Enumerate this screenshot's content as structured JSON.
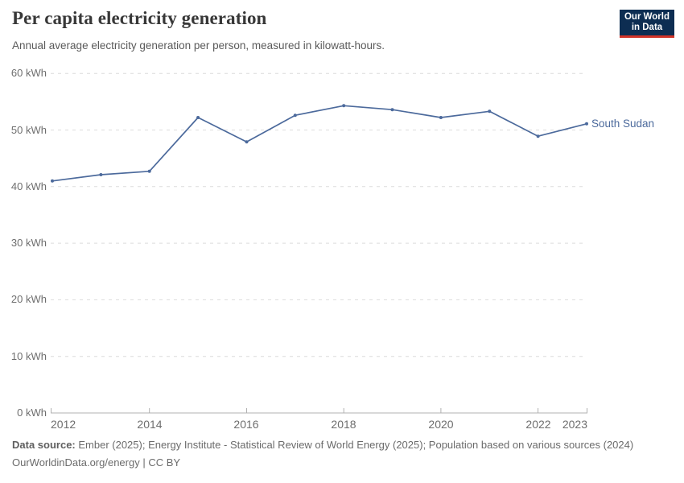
{
  "header": {
    "title": "Per capita electricity generation",
    "subtitle": "Annual average electricity generation per person, measured in kilowatt-hours.",
    "logo": {
      "line1": "Our World",
      "line2": "in Data",
      "bg_color": "#0d2d52",
      "accent_color": "#d13328"
    }
  },
  "chart_data": {
    "type": "line",
    "title": "Per capita electricity generation",
    "unit": "kWh",
    "x": [
      2012,
      2013,
      2014,
      2015,
      2016,
      2017,
      2018,
      2019,
      2020,
      2021,
      2022,
      2023
    ],
    "series": [
      {
        "name": "South Sudan",
        "color": "#4c6a9c",
        "values": [
          41.0,
          42.1,
          42.7,
          52.2,
          47.9,
          52.6,
          54.3,
          53.6,
          52.2,
          53.3,
          48.9,
          51.1
        ]
      }
    ],
    "ylim": [
      0,
      60
    ],
    "yticks": [
      {
        "value": 0,
        "label": "0 kWh"
      },
      {
        "value": 10,
        "label": "10 kWh"
      },
      {
        "value": 20,
        "label": "20 kWh"
      },
      {
        "value": 30,
        "label": "30 kWh"
      },
      {
        "value": 40,
        "label": "40 kWh"
      },
      {
        "value": 50,
        "label": "50 kWh"
      },
      {
        "value": 60,
        "label": "60 kWh"
      }
    ],
    "xticks": [
      {
        "value": 2012,
        "label": "2012",
        "align": "start"
      },
      {
        "value": 2014,
        "label": "2014",
        "align": "center"
      },
      {
        "value": 2016,
        "label": "2016",
        "align": "center"
      },
      {
        "value": 2018,
        "label": "2018",
        "align": "center"
      },
      {
        "value": 2020,
        "label": "2020",
        "align": "center"
      },
      {
        "value": 2022,
        "label": "2022",
        "align": "center"
      },
      {
        "value": 2023,
        "label": "2023",
        "align": "end"
      }
    ],
    "grid": "horizontal-dashed",
    "grid_color": "#dcdcdc",
    "axis_color": "#b0b0b0",
    "legend_position": "end-of-line"
  },
  "footer": {
    "datasource_label": "Data source:",
    "datasource_text": " Ember (2025); Energy Institute - Statistical Review of World Energy (2025); Population based on various sources (2024)",
    "license_text": "OurWorldinData.org/energy | CC BY"
  }
}
